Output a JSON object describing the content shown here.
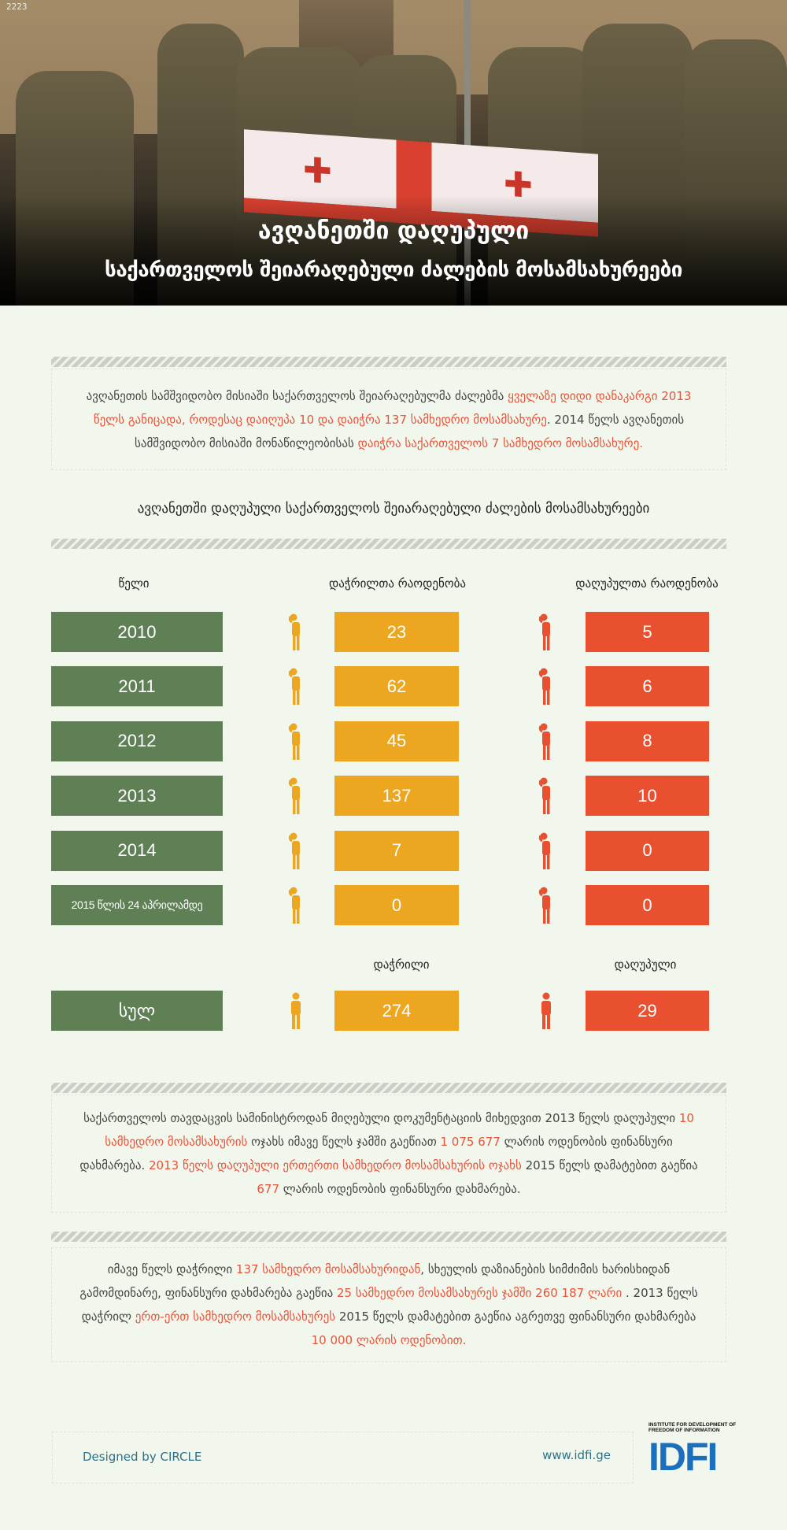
{
  "header": {
    "badge": "2223",
    "title_line1": "ავღანეთში დაღუპული",
    "title_line2": "საქართველოს შეიარაღებული ძალების მოსამსახურეები"
  },
  "intro": {
    "parts": [
      {
        "text": "ავღანეთის სამშვიდობო მისიაში საქართველოს შეიარაღებულმა ძალებმა ",
        "hl": false
      },
      {
        "text": "ყველაზე დიდი დანაკარგი 2013 წელს განიცადა, როდესაც დაიღუპა 10 და დაიჭრა 137 სამხედრო მოსამსახურე",
        "hl": true
      },
      {
        "text": ". 2014 წელს ავღანეთის სამშვიდობო მისიაში მონაწილეობისას ",
        "hl": false
      },
      {
        "text": "დაიჭრა საქართველოს 7 სამხედრო მოსამსახურე.",
        "hl": true
      }
    ]
  },
  "table": {
    "title": "ავღანეთში დაღუპული საქართველოს შეიარაღებული ძალების მოსამსახურეები",
    "headers": {
      "year": "წელი",
      "injured": "დაჭრილთა რაოდენობა",
      "killed": "დაღუპულთა რაოდენობა"
    },
    "rows": [
      {
        "year": "2010",
        "injured": "23",
        "killed": "5"
      },
      {
        "year": "2011",
        "injured": "62",
        "killed": "6"
      },
      {
        "year": "2012",
        "injured": "45",
        "killed": "8"
      },
      {
        "year": "2013",
        "injured": "137",
        "killed": "10"
      },
      {
        "year": "2014",
        "injured": "7",
        "killed": "0"
      },
      {
        "year": "2015 წლის 24 აპრილამდე",
        "injured": "0",
        "killed": "0"
      }
    ],
    "totals": {
      "injured_label": "დაჭრილი",
      "killed_label": "დაღუპული",
      "label": "სულ",
      "injured": "274",
      "killed": "29"
    }
  },
  "para2": {
    "parts": [
      {
        "text": "საქართველოს თავდაცვის სამინისტროდან მიღებული დოკუმენტაციის მიხედვით 2013 წელს დაღუპული ",
        "hl": false
      },
      {
        "text": "10 სამხედრო მოსამსახურის",
        "hl": true
      },
      {
        "text": " ოჯახს იმავე წელს ჯამში გაეწიათ ",
        "hl": false
      },
      {
        "text": "1 075 677",
        "hl": true
      },
      {
        "text": " ლარის ოდენობის ფინანსური დახმარება. ",
        "hl": false
      },
      {
        "text": "2013 წელს დაღუპული ერთერთი სამხედრო მოსამსახურის ოჯახს",
        "hl": true
      },
      {
        "text": "  2015 წელს დამატებით გაეწია ",
        "hl": false
      },
      {
        "text": "677",
        "hl": true
      },
      {
        "text": " ლარის ოდენობის ფინანსური დახმარება.",
        "hl": false
      }
    ]
  },
  "para3": {
    "parts": [
      {
        "text": "იმავე წელს დაჭრილი ",
        "hl": false
      },
      {
        "text": "137 სამხედრო მოსამსახურიდან",
        "hl": true
      },
      {
        "text": ", სხეულის დაზიანების სიმძიმის ხარისხიდან გამომდინარე, ფინანსური დახმარება გაეწია ",
        "hl": false
      },
      {
        "text": "25 სამხედრო მოსამსახურეს ჯამში  260 187 ლარი",
        "hl": true
      },
      {
        "text": " . 2013 წელს დაჭრილ ",
        "hl": false
      },
      {
        "text": "ერთ-ერთ სამხედრო მოსამსახურეს",
        "hl": true
      },
      {
        "text": " 2015 წელს დამატებით გაეწია აგრეთვე ფინანსური დახმარება ",
        "hl": false
      },
      {
        "text": "10 000 ლარის ოდენობით.",
        "hl": true
      }
    ]
  },
  "footer": {
    "designed": "Designed by CIRCLE",
    "website": "www.idfi.ge",
    "logo_text": "INSTITUTE FOR DEVELOPMENT OF FREEDOM OF INFORMATION",
    "logo_mark": "IDFI"
  },
  "colors": {
    "green": "#5f7f55",
    "orange": "#eda620",
    "red": "#e8502f",
    "highlight": "#e8533a"
  }
}
